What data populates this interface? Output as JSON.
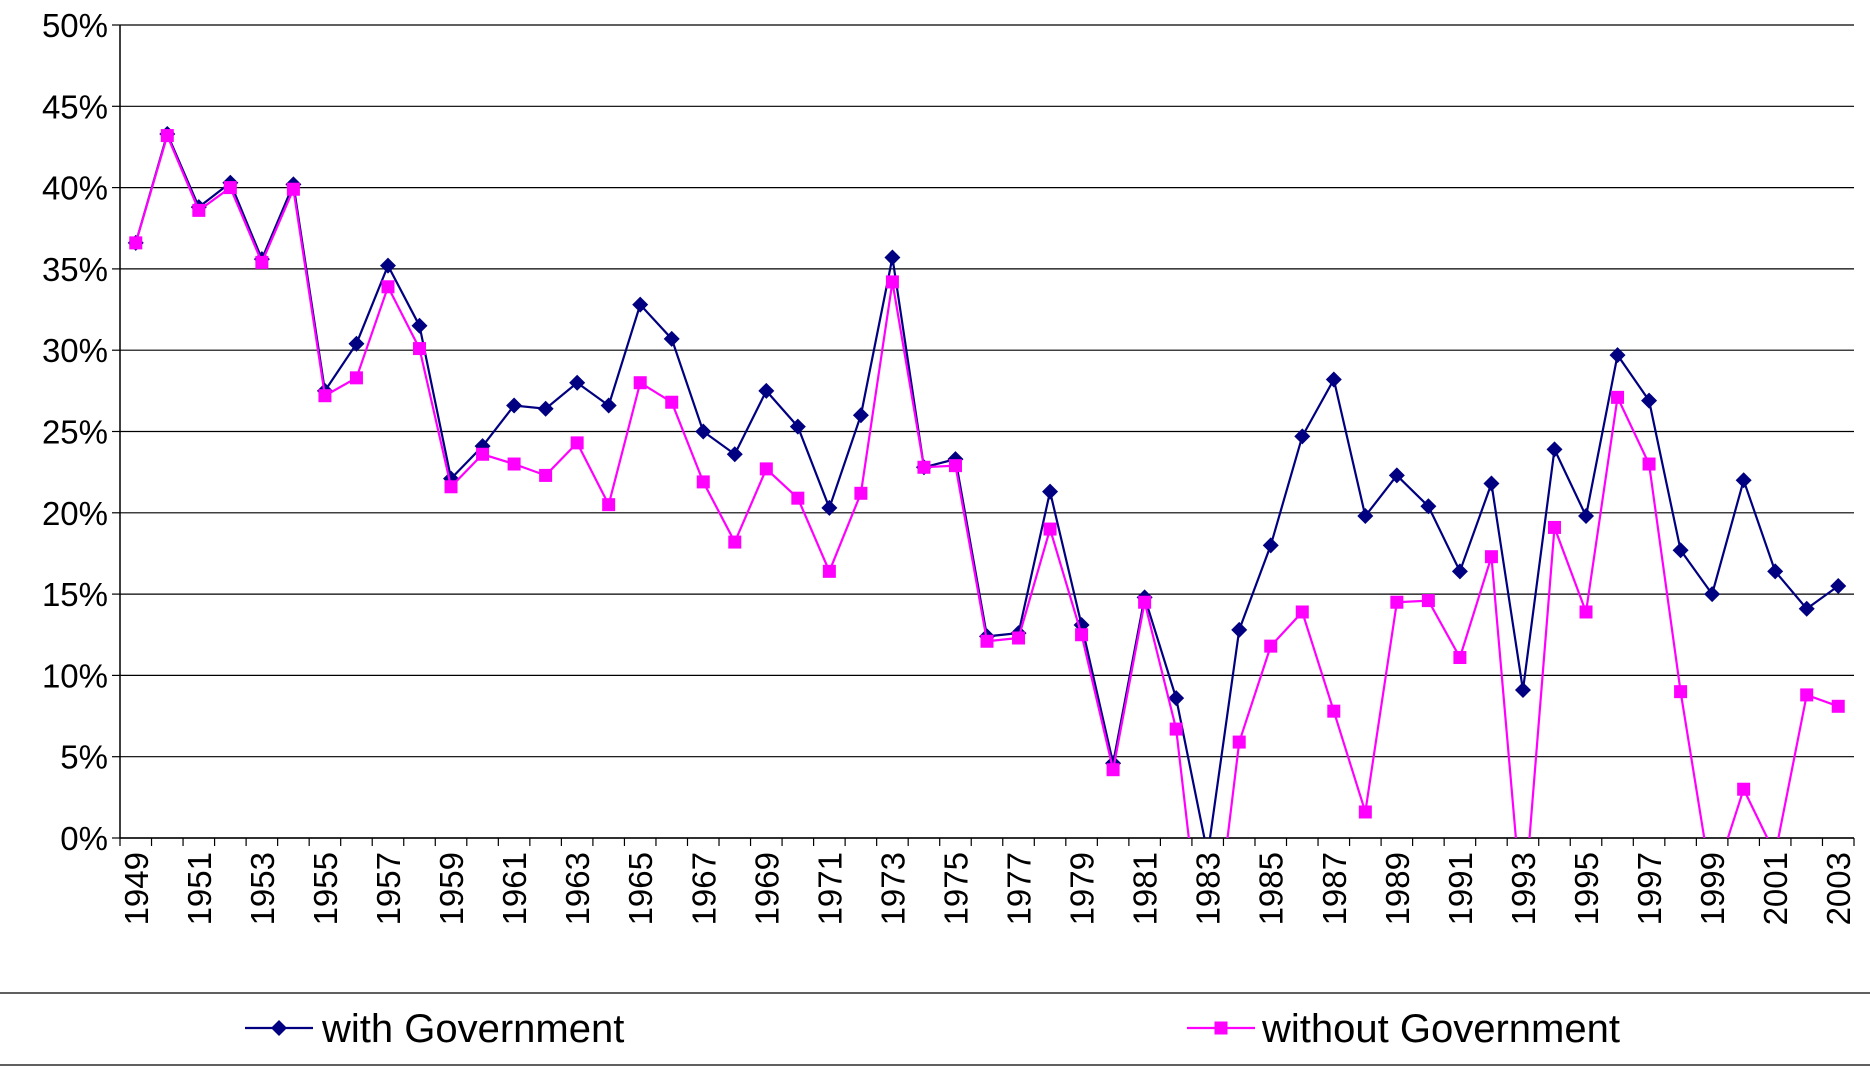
{
  "chart_data": {
    "type": "line",
    "categories": [
      "1949",
      null,
      "1951",
      null,
      "1953",
      null,
      "1955",
      null,
      "1957",
      null,
      "1959",
      null,
      "1961",
      null,
      "1963",
      null,
      "1965",
      null,
      "1967",
      null,
      "1969",
      null,
      "1971",
      null,
      "1973",
      null,
      "1975",
      null,
      "1977",
      null,
      "1979",
      null,
      "1981",
      null,
      "1983",
      null,
      "1985",
      null,
      "1987",
      null,
      "1989",
      null,
      "1991",
      null,
      "1993",
      null,
      "1995",
      null,
      "1997",
      null,
      "1999",
      null,
      "2001",
      null,
      "2003"
    ],
    "series": [
      {
        "name": "with Government",
        "color": "#000080",
        "marker": "diamond",
        "values": [
          36.6,
          43.3,
          38.8,
          40.3,
          35.6,
          40.2,
          27.5,
          30.4,
          35.2,
          31.5,
          22.1,
          24.1,
          26.6,
          26.4,
          28.0,
          26.6,
          32.8,
          30.7,
          25.0,
          23.6,
          27.5,
          25.3,
          20.3,
          26.0,
          35.7,
          22.8,
          23.3,
          12.4,
          12.6,
          21.3,
          13.1,
          4.6,
          14.8,
          8.6,
          -1,
          12.8,
          18.0,
          24.7,
          28.2,
          19.8,
          22.3,
          20.4,
          16.4,
          21.8,
          9.1,
          23.9,
          19.8,
          29.7,
          26.9,
          17.7,
          15.0,
          22.0,
          16.4,
          14.1,
          15.5
        ]
      },
      {
        "name": "without Government",
        "color": "#ff00ff",
        "marker": "square",
        "values": [
          36.6,
          43.2,
          38.6,
          40.0,
          35.4,
          39.9,
          27.2,
          28.3,
          33.9,
          30.1,
          21.6,
          23.6,
          23.0,
          22.3,
          24.3,
          20.5,
          28.0,
          26.8,
          21.9,
          18.2,
          22.7,
          20.9,
          16.4,
          21.2,
          34.2,
          22.8,
          22.9,
          12.1,
          12.3,
          19.0,
          12.5,
          4.2,
          14.5,
          6.7,
          -10,
          5.9,
          11.8,
          13.9,
          7.8,
          1.6,
          14.5,
          14.6,
          11.1,
          17.3,
          -5,
          19.1,
          13.9,
          27.1,
          23.0,
          9.0,
          -3,
          3.0,
          -1,
          8.8,
          8.1
        ]
      }
    ],
    "ylim": [
      0,
      50
    ],
    "yticks": [
      {
        "value": 0,
        "label": "0%"
      },
      {
        "value": 5,
        "label": "5%"
      },
      {
        "value": 10,
        "label": "10%"
      },
      {
        "value": 15,
        "label": "15%"
      },
      {
        "value": 20,
        "label": "20%"
      },
      {
        "value": 25,
        "label": "25%"
      },
      {
        "value": 30,
        "label": "30%"
      },
      {
        "value": 35,
        "label": "35%"
      },
      {
        "value": 40,
        "label": "40%"
      },
      {
        "value": 45,
        "label": "45%"
      },
      {
        "value": 50,
        "label": "50%"
      }
    ],
    "grid": true,
    "legend": "bottom"
  }
}
